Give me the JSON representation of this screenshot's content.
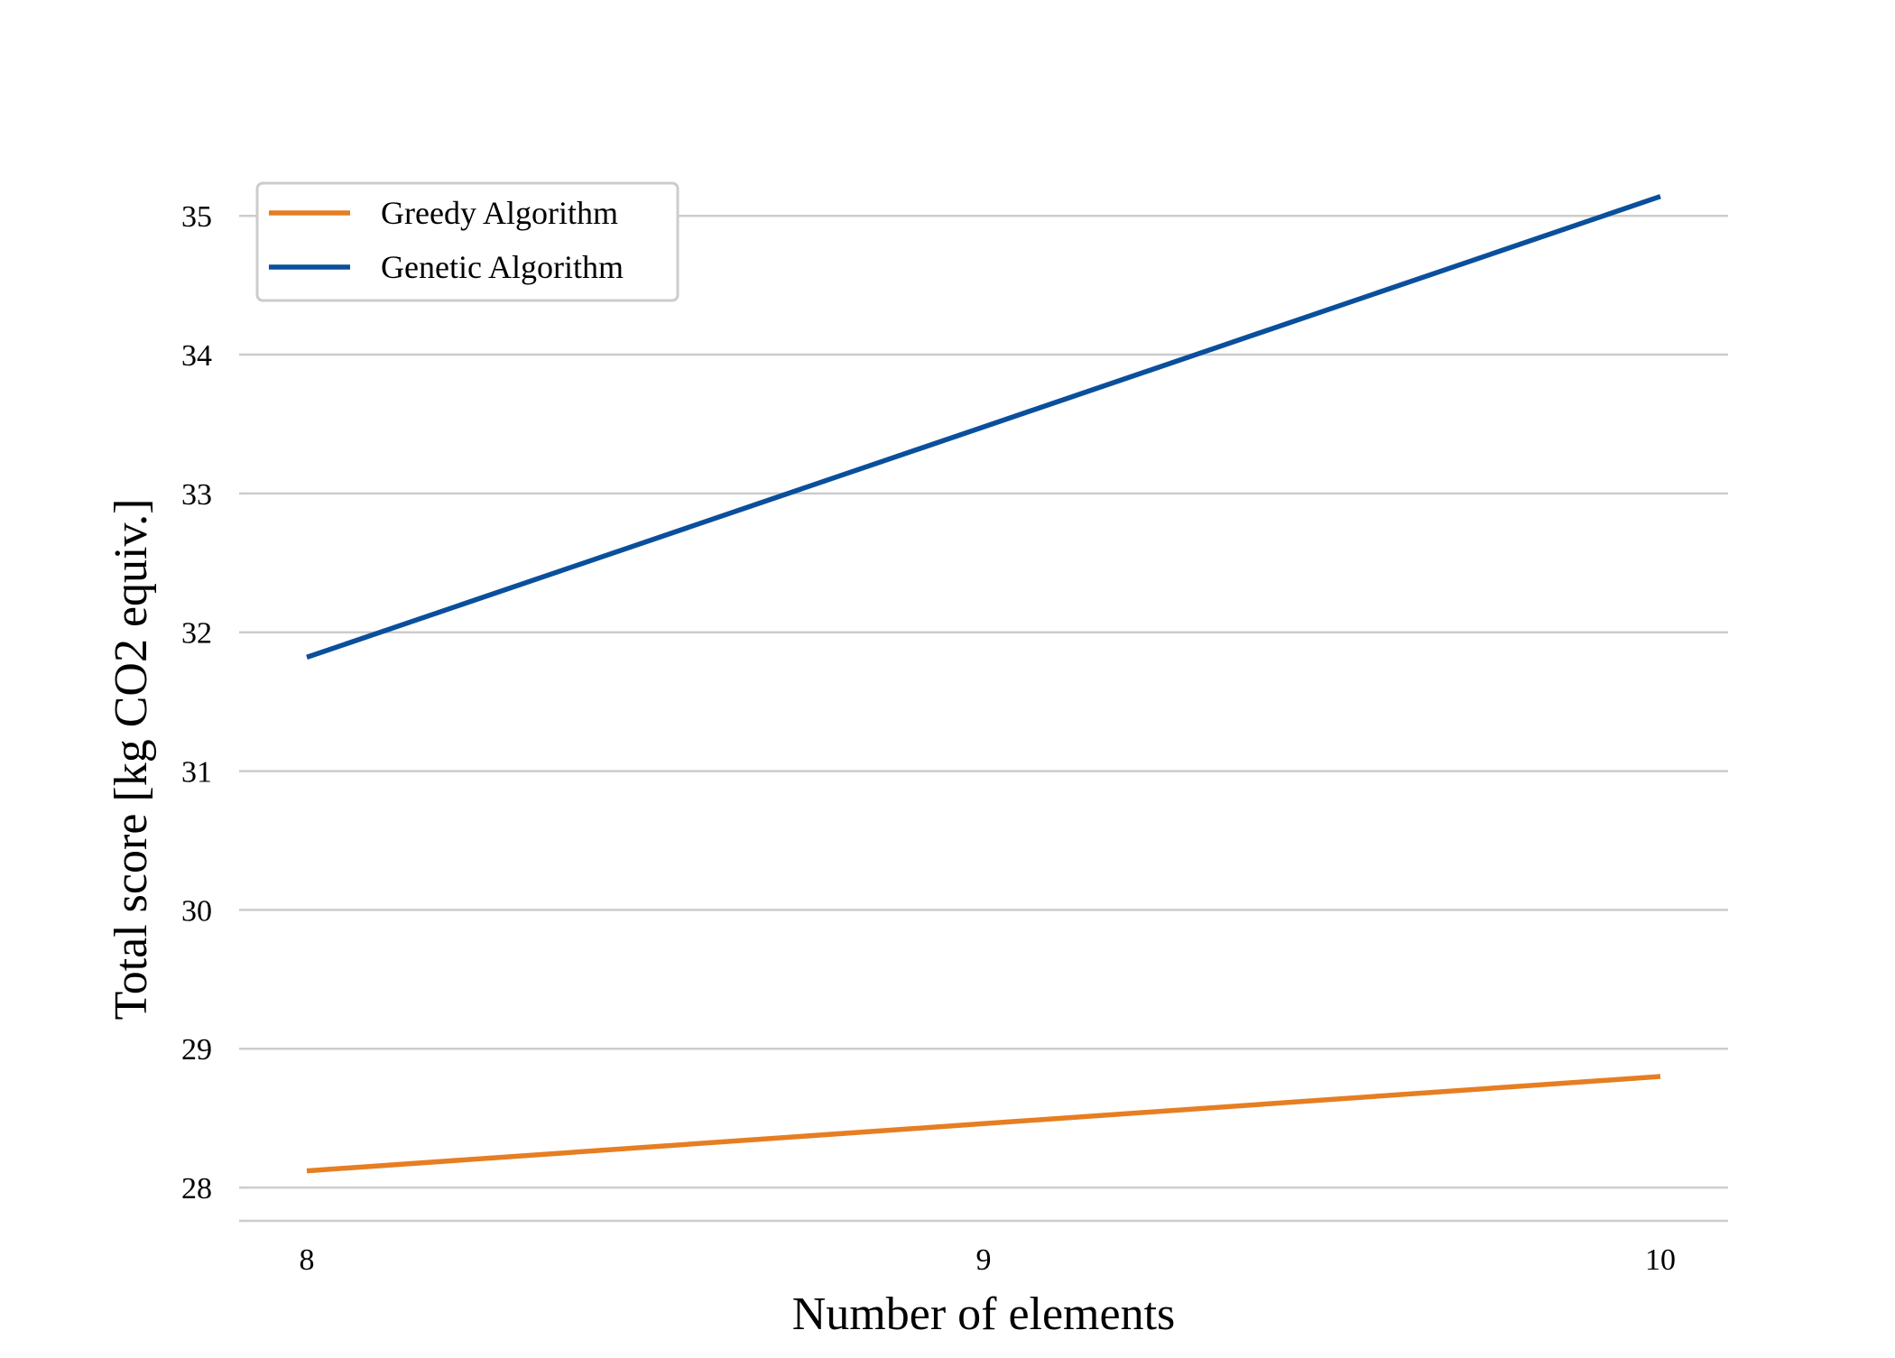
{
  "chart_data": {
    "type": "line",
    "x": [
      8,
      9,
      10
    ],
    "series": [
      {
        "name": "Greedy Algorithm",
        "color": "#e67e22",
        "values": [
          28.12,
          28.46,
          28.8
        ]
      },
      {
        "name": "Genetic Algorithm",
        "color": "#0a4f9c",
        "values": [
          31.82,
          33.48,
          35.14
        ]
      }
    ],
    "xlabel": "Number of elements",
    "ylabel": "Total score [kg CO2 equiv.]",
    "xlim": [
      7.9,
      10.1
    ],
    "ylim": [
      27.76,
      35.58
    ],
    "xticks": [
      8,
      9,
      10
    ],
    "xtick_labels": [
      "8",
      "9",
      "10"
    ],
    "yticks": [
      28,
      29,
      30,
      31,
      32,
      33,
      34,
      35
    ],
    "ytick_labels": [
      "28",
      "29",
      "30",
      "31",
      "32",
      "33",
      "34",
      "35"
    ],
    "grid": "horizontal",
    "legend_position": "top-left"
  }
}
